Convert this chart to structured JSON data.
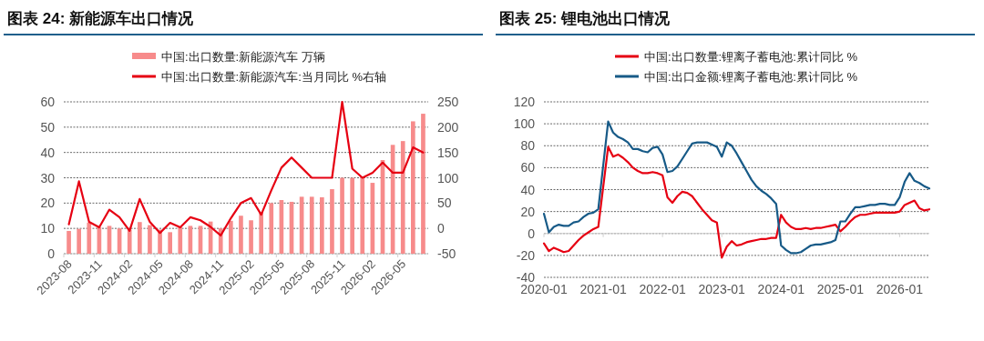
{
  "chart_data": [
    {
      "type": "bar",
      "title": "图表 24: 新能源车出口情况",
      "grid": "y",
      "legend": "top",
      "categories": [
        "2023-08",
        null,
        null,
        "2023-11",
        null,
        null,
        "2024-02",
        null,
        null,
        "2024-05",
        null,
        null,
        "2024-08",
        null,
        null,
        "2024-11",
        null,
        null,
        "2025-02",
        null,
        null,
        "2025-05",
        null,
        null,
        "2025-08",
        null,
        null,
        "2025-11",
        null,
        null,
        "2026-02",
        null,
        null,
        "2026-05",
        null,
        null
      ],
      "ylim": [
        0,
        60
      ],
      "yticks": [
        0,
        10,
        20,
        30,
        40,
        50,
        60
      ],
      "y2lim": [
        -50,
        250
      ],
      "y2ticks": [
        -50,
        0,
        50,
        100,
        150,
        200,
        250
      ],
      "series": [
        {
          "name": "中国:出口数量:新能源汽车 万辆",
          "type": "bar",
          "color": "#f78b8b",
          "values": [
            9,
            9.8,
            12.3,
            10.5,
            11,
            10,
            9.5,
            12.5,
            11.3,
            9.5,
            8.5,
            10.5,
            11,
            11,
            12.7,
            10,
            13,
            15,
            13.2,
            16.5,
            20,
            21.2,
            20.5,
            22.5,
            22.5,
            22.3,
            25.5,
            30,
            30,
            30.5,
            28,
            37,
            43,
            44.5,
            52.3,
            55.3
          ]
        },
        {
          "name": "中国:出口数量:新能源汽车:当月同比 %右轴",
          "type": "line",
          "axis": "y2",
          "color": "#e60012",
          "values": [
            8,
            93,
            13,
            2,
            37,
            22,
            -5,
            58,
            13,
            -9,
            11,
            2,
            22,
            16,
            3,
            -14,
            20,
            50,
            60,
            27,
            75,
            120,
            140,
            120,
            100,
            100,
            100,
            250,
            118,
            100,
            110,
            130,
            110,
            110,
            160,
            150
          ]
        }
      ]
    },
    {
      "type": "line",
      "title": "图表 25: 锂电池出口情况",
      "grid": "y",
      "legend": "top",
      "x": [
        "2020-01",
        "2020-02",
        "2020-03",
        "2020-04",
        "2020-05",
        "2020-06",
        "2020-07",
        "2020-08",
        "2020-09",
        "2020-10",
        "2020-11",
        "2020-12",
        "2021-02",
        "2021-03",
        "2021-04",
        "2021-05",
        "2021-06",
        "2021-07",
        "2021-08",
        "2021-09",
        "2021-10",
        "2021-11",
        "2021-12",
        "2022-01",
        "2022-02",
        "2022-03",
        "2022-04",
        "2022-05",
        "2022-06",
        "2022-07",
        "2022-08",
        "2022-09",
        "2022-10",
        "2022-11",
        "2022-12",
        "2023-01",
        "2023-02",
        "2023-03",
        "2023-04",
        "2023-05",
        "2023-06",
        "2023-07",
        "2023-08",
        "2023-09",
        "2023-10",
        "2023-11",
        "2023-12",
        "2024-01",
        "2024-02",
        "2024-03",
        "2024-04",
        "2024-05",
        "2024-06",
        "2024-07",
        "2024-08",
        "2024-09",
        "2024-10",
        "2024-11",
        "2024-12",
        "2025-01",
        "2025-02",
        "2025-03",
        "2025-04",
        "2025-05",
        "2025-06",
        "2025-07",
        "2025-08",
        "2025-09",
        "2025-10",
        "2025-11",
        "2025-12",
        "2026-01",
        "2026-02",
        "2026-03",
        "2026-04",
        "2026-05",
        "2026-06",
        "2026-07"
      ],
      "xlim": [
        "2020-01",
        "2026-07"
      ],
      "xticks": [
        "2020-01",
        "2021-01",
        "2022-01",
        "2023-01",
        "2024-01",
        "2025-01",
        "2026-01"
      ],
      "ylim": [
        -40,
        120
      ],
      "yticks": [
        -40,
        -20,
        0,
        20,
        40,
        60,
        80,
        100,
        120
      ],
      "series": [
        {
          "name": "中国:出口数量:锂离子蓄电池:累计同比 %",
          "color": "#e60012",
          "values": [
            -9,
            -16,
            -13,
            -15,
            -17,
            -16,
            -11,
            -6,
            -2,
            1,
            4,
            6,
            79,
            70,
            72,
            69,
            65,
            60,
            57,
            55,
            55,
            56,
            55,
            53,
            33,
            28,
            34,
            38,
            37,
            34,
            28,
            22,
            17,
            12,
            10,
            -22,
            -12,
            -7,
            -11,
            -10,
            -8,
            -7,
            -6,
            -5,
            -5,
            -4,
            -4,
            17,
            10,
            6,
            4,
            4,
            5,
            4,
            5,
            5,
            6,
            7,
            8,
            2,
            6,
            11,
            15,
            17,
            17,
            18,
            19,
            19,
            19,
            19,
            19,
            20,
            26,
            28,
            30,
            23,
            21,
            22
          ]
        },
        {
          "name": "中国:出口金额:锂离子蓄电池:累计同比 %",
          "color": "#175a87",
          "values": [
            18,
            1,
            6,
            8,
            7,
            7,
            10,
            11,
            15,
            18,
            19,
            22,
            102,
            92,
            88,
            86,
            83,
            77,
            77,
            75,
            74,
            78,
            79,
            72,
            56,
            57,
            61,
            68,
            75,
            82,
            83,
            83,
            83,
            81,
            79,
            70,
            83,
            80,
            73,
            65,
            57,
            49,
            43,
            39,
            36,
            32,
            27,
            -11,
            -15,
            -18,
            -18,
            -17,
            -14,
            -11,
            -10,
            -10,
            -9,
            -8,
            -6,
            11,
            11,
            18,
            24,
            24,
            25,
            26,
            26,
            27,
            27,
            26,
            26,
            33,
            47,
            55,
            48,
            46,
            43,
            41
          ]
        }
      ]
    }
  ]
}
